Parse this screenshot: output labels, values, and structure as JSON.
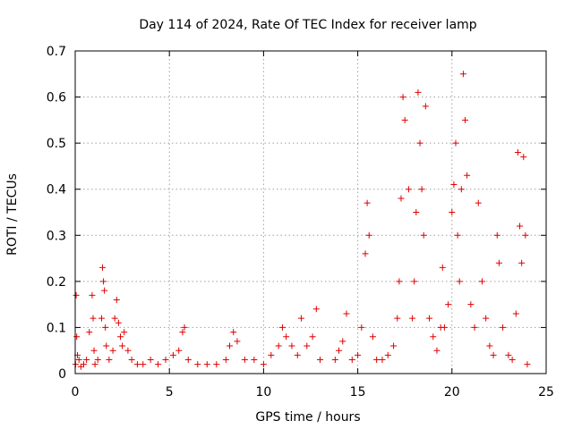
{
  "chart_data": {
    "type": "scatter",
    "title": "Day 114 of 2024, Rate Of TEC Index for receiver lamp",
    "xlabel": "GPS time / hours",
    "ylabel": "ROTI / TECUs",
    "xlim": [
      0,
      25
    ],
    "ylim": [
      0,
      0.7
    ],
    "xticks": [
      0,
      5,
      10,
      15,
      20,
      25
    ],
    "xtick_labels": [
      "0",
      "5",
      "10",
      "15",
      "20",
      "25"
    ],
    "yticks": [
      0,
      0.1,
      0.2,
      0.3,
      0.4,
      0.5,
      0.6,
      0.7
    ],
    "ytick_labels": [
      "0",
      "0.1",
      "0.2",
      "0.3",
      "0.4",
      "0.5",
      "0.6",
      "0.7"
    ],
    "grid": true,
    "marker": "+",
    "marker_color": "#e00000",
    "series": [
      {
        "name": "ROTI",
        "x": [
          0.02,
          0.05,
          0.08,
          0.12,
          0.2,
          0.3,
          0.45,
          0.6,
          0.75,
          0.9,
          0.95,
          1.0,
          1.05,
          1.2,
          1.4,
          1.45,
          1.5,
          1.55,
          1.6,
          1.65,
          1.8,
          2.0,
          2.1,
          2.2,
          2.3,
          2.4,
          2.5,
          2.6,
          2.8,
          3.0,
          3.3,
          3.6,
          4.0,
          4.4,
          4.8,
          5.2,
          5.5,
          5.7,
          5.8,
          6.0,
          6.5,
          7.0,
          7.5,
          8.0,
          8.2,
          8.4,
          8.6,
          9.0,
          9.5,
          10.0,
          10.4,
          10.8,
          11.0,
          11.2,
          11.5,
          11.8,
          12.0,
          12.3,
          12.6,
          12.8,
          13.0,
          13.8,
          14.0,
          14.2,
          14.4,
          14.7,
          15.0,
          15.2,
          15.4,
          15.5,
          15.6,
          15.8,
          16.0,
          16.3,
          16.6,
          16.9,
          17.1,
          17.2,
          17.3,
          17.4,
          17.5,
          17.7,
          17.9,
          18.0,
          18.1,
          18.2,
          18.3,
          18.4,
          18.5,
          18.6,
          18.8,
          19.0,
          19.2,
          19.4,
          19.5,
          19.6,
          19.8,
          20.0,
          20.1,
          20.2,
          20.3,
          20.4,
          20.5,
          20.6,
          20.7,
          20.8,
          21.0,
          21.2,
          21.4,
          21.6,
          21.8,
          22.0,
          22.2,
          22.4,
          22.5,
          22.7,
          23.0,
          23.2,
          23.4,
          23.5,
          23.6,
          23.7,
          23.8,
          23.9,
          24.0
        ],
        "y": [
          0.02,
          0.17,
          0.08,
          0.04,
          0.03,
          0.015,
          0.02,
          0.03,
          0.09,
          0.17,
          0.12,
          0.05,
          0.02,
          0.03,
          0.12,
          0.23,
          0.2,
          0.18,
          0.1,
          0.06,
          0.03,
          0.05,
          0.12,
          0.16,
          0.11,
          0.08,
          0.06,
          0.09,
          0.05,
          0.03,
          0.02,
          0.02,
          0.03,
          0.02,
          0.03,
          0.04,
          0.05,
          0.09,
          0.1,
          0.03,
          0.02,
          0.02,
          0.02,
          0.03,
          0.06,
          0.09,
          0.07,
          0.03,
          0.03,
          0.02,
          0.04,
          0.06,
          0.1,
          0.08,
          0.06,
          0.04,
          0.12,
          0.06,
          0.08,
          0.14,
          0.03,
          0.03,
          0.05,
          0.07,
          0.13,
          0.03,
          0.04,
          0.1,
          0.26,
          0.37,
          0.3,
          0.08,
          0.03,
          0.03,
          0.04,
          0.06,
          0.12,
          0.2,
          0.38,
          0.6,
          0.55,
          0.4,
          0.12,
          0.2,
          0.35,
          0.61,
          0.5,
          0.4,
          0.3,
          0.58,
          0.12,
          0.08,
          0.05,
          0.1,
          0.23,
          0.1,
          0.15,
          0.35,
          0.41,
          0.5,
          0.3,
          0.2,
          0.4,
          0.65,
          0.55,
          0.43,
          0.15,
          0.1,
          0.37,
          0.2,
          0.12,
          0.06,
          0.04,
          0.3,
          0.24,
          0.1,
          0.04,
          0.03,
          0.13,
          0.48,
          0.32,
          0.24,
          0.47,
          0.3,
          0.02
        ]
      }
    ]
  }
}
